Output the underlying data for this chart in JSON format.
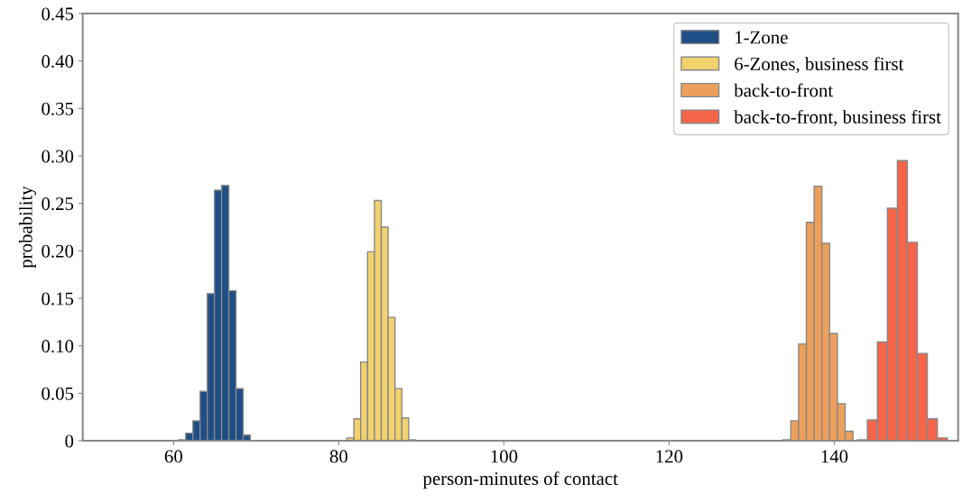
{
  "chart_data": {
    "type": "histogram",
    "xlabel": "person-minutes of contact",
    "ylabel": "probability",
    "xlim": [
      49,
      155
    ],
    "xticks": [
      60,
      80,
      100,
      120,
      140
    ],
    "ylim": [
      0,
      0.45
    ],
    "yticks": [
      {
        "value": 0,
        "label": "0"
      },
      {
        "value": 0.05,
        "label": "0.05"
      },
      {
        "value": 0.1,
        "label": "0.10"
      },
      {
        "value": 0.15,
        "label": "0.15"
      },
      {
        "value": 0.2,
        "label": "0.20"
      },
      {
        "value": 0.25,
        "label": "0.25"
      },
      {
        "value": 0.3,
        "label": "0.30"
      },
      {
        "value": 0.35,
        "label": "0.35"
      },
      {
        "value": 0.4,
        "label": "0.40"
      },
      {
        "value": 0.45,
        "label": "0.45"
      }
    ],
    "legend": "top right",
    "grid": false,
    "bins": [
      60.6,
      61.47,
      62.34,
      63.21,
      64.08,
      64.95,
      65.82,
      66.69,
      67.56,
      68.43,
      69.3,
      81.0,
      81.83,
      82.66,
      83.49,
      84.32,
      85.15,
      85.98,
      86.81,
      87.64,
      88.47,
      89.3,
      133.8,
      134.74,
      135.68,
      136.62,
      137.56,
      138.5,
      139.44,
      140.38,
      141.32,
      142.26,
      142.8,
      144.01,
      145.22,
      146.43,
      147.64,
      148.85,
      150.06,
      151.27,
      152.48,
      153.69
    ],
    "series": [
      {
        "name": "1-Zone",
        "color": "#1f4e87",
        "values": [
          0.001,
          0.008,
          0.021,
          0.052,
          0.155,
          0.264,
          0.269,
          0.158,
          0.055,
          0.006,
          null,
          null,
          null,
          null,
          null,
          null,
          null,
          null,
          null,
          null,
          null,
          null,
          null,
          null,
          null,
          null,
          null,
          null,
          null,
          null,
          null,
          null,
          null,
          null,
          null,
          null,
          null,
          null,
          null,
          null,
          null
        ]
      },
      {
        "name": "6-Zones, business first",
        "color": "#f2d26e",
        "values": [
          null,
          null,
          null,
          null,
          null,
          null,
          null,
          null,
          null,
          null,
          null,
          0.003,
          0.023,
          0.083,
          0.199,
          0.253,
          0.225,
          0.13,
          0.055,
          0.024,
          0.001,
          null,
          null,
          null,
          null,
          null,
          null,
          null,
          null,
          null,
          null,
          null,
          null,
          null,
          null,
          null,
          null,
          null,
          null,
          null,
          null
        ]
      },
      {
        "name": "back-to-front",
        "color": "#eea05a",
        "values": [
          null,
          null,
          null,
          null,
          null,
          null,
          null,
          null,
          null,
          null,
          null,
          null,
          null,
          null,
          null,
          null,
          null,
          null,
          null,
          null,
          null,
          null,
          0.001,
          0.021,
          0.102,
          0.23,
          0.268,
          0.208,
          0.113,
          0.039,
          0.01,
          null,
          null,
          null,
          null,
          null,
          null,
          null,
          null,
          null,
          null
        ]
      },
      {
        "name": "back-to-front, business first",
        "color": "#f4654a",
        "values": [
          null,
          null,
          null,
          null,
          null,
          null,
          null,
          null,
          null,
          null,
          null,
          null,
          null,
          null,
          null,
          null,
          null,
          null,
          null,
          null,
          null,
          null,
          null,
          null,
          null,
          null,
          null,
          null,
          null,
          null,
          null,
          null,
          0.001,
          0.022,
          0.104,
          0.245,
          0.295,
          0.209,
          0.092,
          0.023,
          0.003
        ]
      }
    ]
  }
}
